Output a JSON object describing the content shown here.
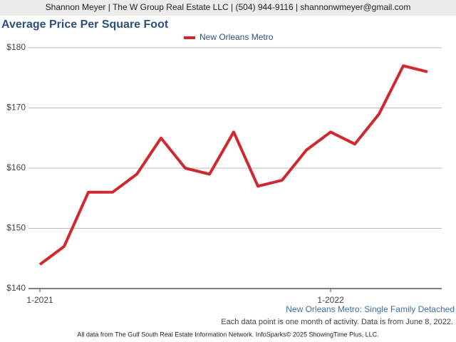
{
  "header": {
    "text": "Shannon Meyer | The W Group Real Estate LLC | (504) 944-9116 | shannonwmeyer@gmail.com"
  },
  "chart_data": {
    "type": "line",
    "title": "Average Price Per Square Foot",
    "categories": [
      "1-2021",
      null,
      null,
      null,
      null,
      null,
      null,
      null,
      null,
      null,
      null,
      null,
      "1-2022",
      null,
      null,
      null,
      null
    ],
    "series": [
      {
        "name": "New Orleans Metro",
        "color": "#d0282e",
        "values": [
          144,
          147,
          156,
          156,
          159,
          165,
          160,
          159,
          166,
          157,
          158,
          163,
          166,
          164,
          169,
          177,
          176
        ]
      }
    ],
    "ylim": [
      140,
      180
    ],
    "yticks": [
      {
        "value": 140,
        "label": "$140"
      },
      {
        "value": 150,
        "label": "$150"
      },
      {
        "value": 160,
        "label": "$160"
      },
      {
        "value": 170,
        "label": "$170"
      },
      {
        "value": 180,
        "label": "$180"
      }
    ],
    "grid": true,
    "legend": "top"
  },
  "footer": {
    "subtitle": "New Orleans Metro: Single Family Detached",
    "note": "Each data point is one month of activity. Data is from June 8, 2022.",
    "credit": "All data from The Gulf South Real Estate Information Network. InfoSparks© 2025 ShowingTime Plus, LLC."
  }
}
